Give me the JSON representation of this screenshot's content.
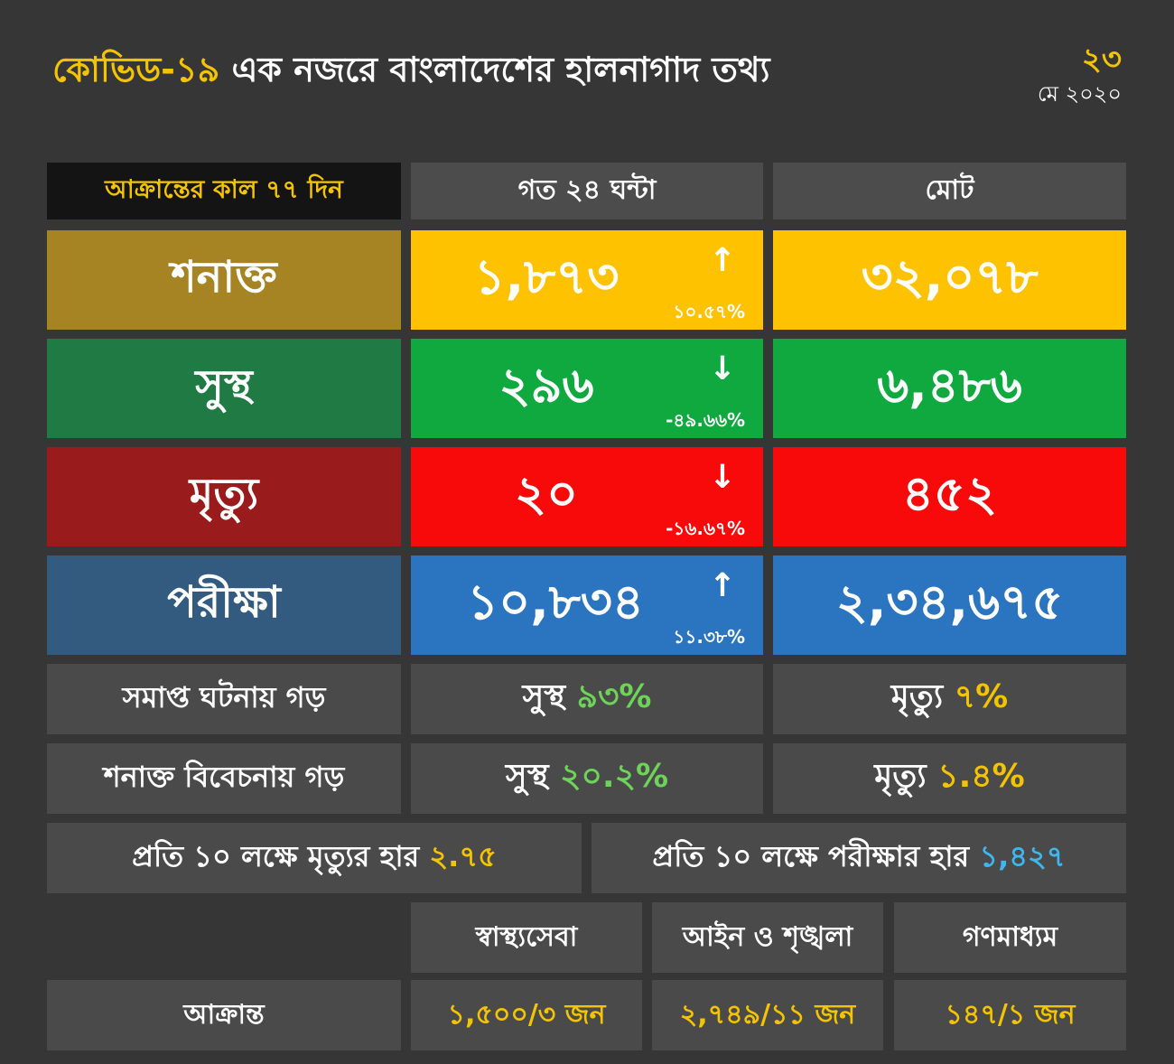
{
  "header": {
    "title_accent": "কোভিড-১৯",
    "title_rest": "এক নজরে বাংলাদেশের হালনাগাদ তথ্য",
    "date_day": "২৩",
    "date_month_year": "মে ২০২০"
  },
  "columns": {
    "period_label": "আক্রান্তের কাল ৭৭ দিন",
    "last24": "গত ২৪ ঘন্টা",
    "total": "মোট"
  },
  "rows": [
    {
      "label": "শনাক্ত",
      "last24": "১,৮৭৩",
      "arrow": "↑",
      "change": "১০.৫৭%",
      "total": "৩২,০৭৮"
    },
    {
      "label": "সুস্থ",
      "last24": "২৯৬",
      "arrow": "↓",
      "change": "-৪৯.৬৬%",
      "total": "৬,৪৮৬"
    },
    {
      "label": "মৃত্যু",
      "last24": "২০",
      "arrow": "↓",
      "change": "-১৬.৬৭%",
      "total": "৪৫২"
    },
    {
      "label": "পরীক্ষা",
      "last24": "১০,৮৩৪",
      "arrow": "↑",
      "change": "১১.৩৮%",
      "total": "২,৩৪,৬৭৫"
    }
  ],
  "averages": [
    {
      "label": "সমাপ্ত ঘটনায় গড়",
      "recovered_label": "সুস্থ",
      "recovered_value": "৯৩%",
      "death_label": "মৃত্যু",
      "death_value": "৭%"
    },
    {
      "label": "শনাক্ত বিবেচনায় গড়",
      "recovered_label": "সুস্থ",
      "recovered_value": "২০.২%",
      "death_label": "মৃত্যু",
      "death_value": "১.৪%"
    }
  ],
  "rates": {
    "death_label": "প্রতি ১০ লক্ষে মৃত্যুর হার",
    "death_value": "২.৭৫",
    "test_label": "প্রতি ১০ লক্ষে পরীক্ষার হার",
    "test_value": "১,৪২৭"
  },
  "professions": {
    "headers": [
      "স্বাস্থ্যসেবা",
      "আইন ও শৃঙ্খলা",
      "গণমাধ্যম"
    ],
    "row_label": "আক্রান্ত",
    "values": [
      "১,৫০০/৩ জন",
      "২,৭৪৯/১১ জন",
      "১৪৭/১ জন"
    ]
  },
  "colors": {
    "background": "#363636",
    "detected_label": "#a68424",
    "detected_value": "#ffc200",
    "recovered_label": "#1f7b43",
    "recovered_value": "#10a93f",
    "death_label": "#9a1b1c",
    "death_value": "#f80a0a",
    "test_label": "#335b7f",
    "test_value": "#2b74c0",
    "accent_yellow": "#f5c400"
  }
}
